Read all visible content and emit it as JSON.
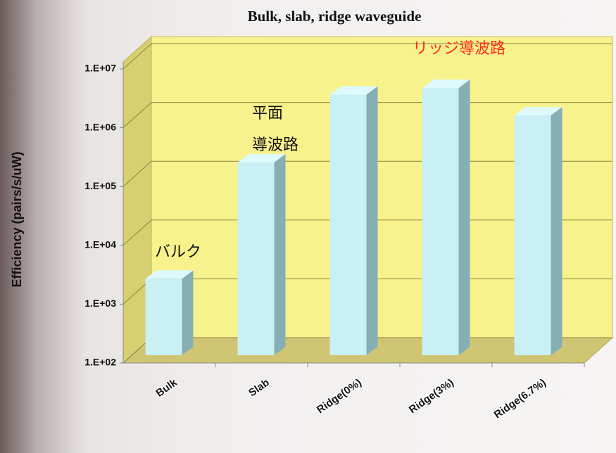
{
  "chart_data": {
    "type": "bar",
    "title": "Bulk, slab, ridge waveguide",
    "y_label": "Efficiency (pairs/s/uW)",
    "categories": [
      "Bulk",
      "Slab",
      "Ridge(0%)",
      "Ridge(3%)",
      "Ridge(6.7%)"
    ],
    "values": [
      2000,
      190000,
      2700000,
      3500000,
      1200000
    ],
    "color": "#c8f0f5",
    "y_scale": "log",
    "ylim": [
      100,
      10000000
    ],
    "yticks": [
      {
        "value": 100,
        "label": "1.E+02"
      },
      {
        "value": 1000,
        "label": "1.E+03"
      },
      {
        "value": 10000,
        "label": "1.E+04"
      },
      {
        "value": 100000,
        "label": "1.E+05"
      },
      {
        "value": 1000000,
        "label": "1.E+06"
      },
      {
        "value": 10000000,
        "label": "1.E+07"
      }
    ],
    "grid": true,
    "annotations": [
      "バルク",
      "平面",
      "導波路",
      "リッジ導波路"
    ]
  }
}
